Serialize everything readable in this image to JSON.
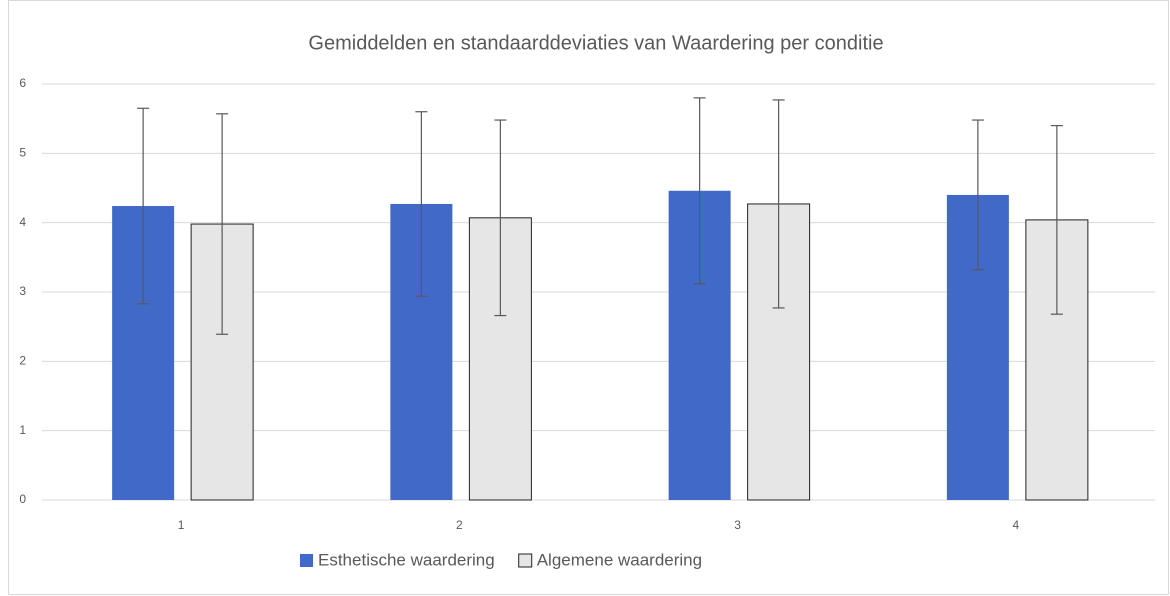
{
  "chart_data": {
    "type": "bar",
    "title": "Gemiddelden en standaarddeviaties van Waardering per conditie",
    "categories": [
      "1",
      "2",
      "3",
      "4"
    ],
    "series": [
      {
        "name": "Esthetische waardering",
        "color": "#4169c8",
        "values": [
          4.24,
          4.27,
          4.46,
          4.4
        ],
        "errors": [
          1.41,
          1.33,
          1.34,
          1.08
        ]
      },
      {
        "name": "Algemene waardering",
        "color": "#e7e6e6",
        "values": [
          3.98,
          4.07,
          4.27,
          4.04
        ],
        "errors": [
          1.59,
          1.41,
          1.5,
          1.36
        ]
      }
    ],
    "ylim": [
      0,
      6
    ],
    "yticks": [
      0,
      1,
      2,
      3,
      4,
      5,
      6
    ],
    "grid": true,
    "legend": "bottom"
  }
}
